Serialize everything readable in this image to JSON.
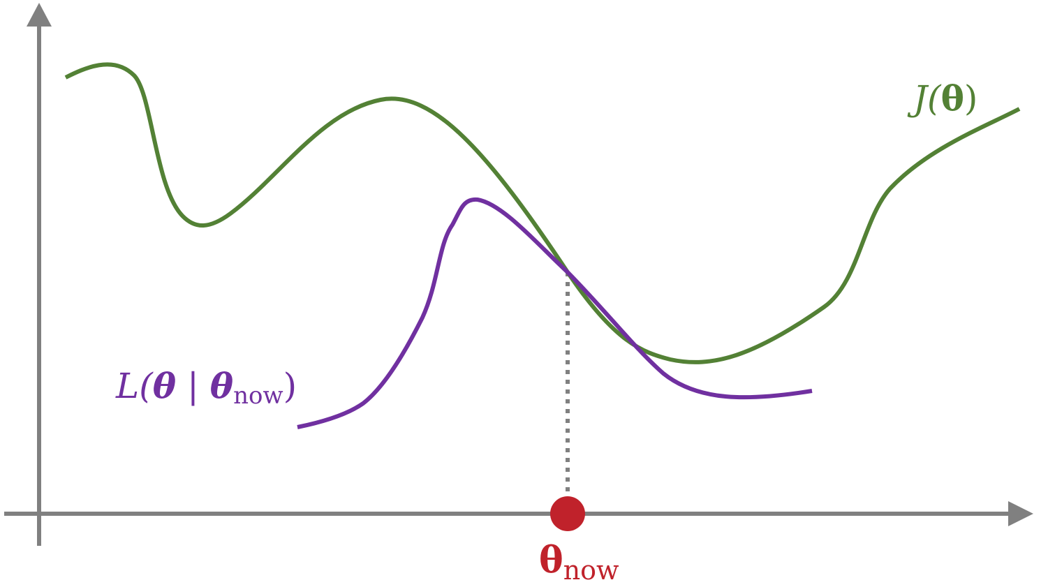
{
  "colors": {
    "objective": "#538135",
    "surrogate": "#7030A0",
    "current_point": "#C0222B",
    "axis": "#808080",
    "guide": "#808080"
  },
  "labels": {
    "objective": {
      "main": "J(",
      "var": "θ",
      "close": ")"
    },
    "surrogate": {
      "main": "L(",
      "var1": "θ",
      "sep": " | ",
      "var2": "θ",
      "sub": "now",
      "close": ")"
    },
    "current_point": {
      "var": "θ",
      "sub": "now"
    }
  }
}
